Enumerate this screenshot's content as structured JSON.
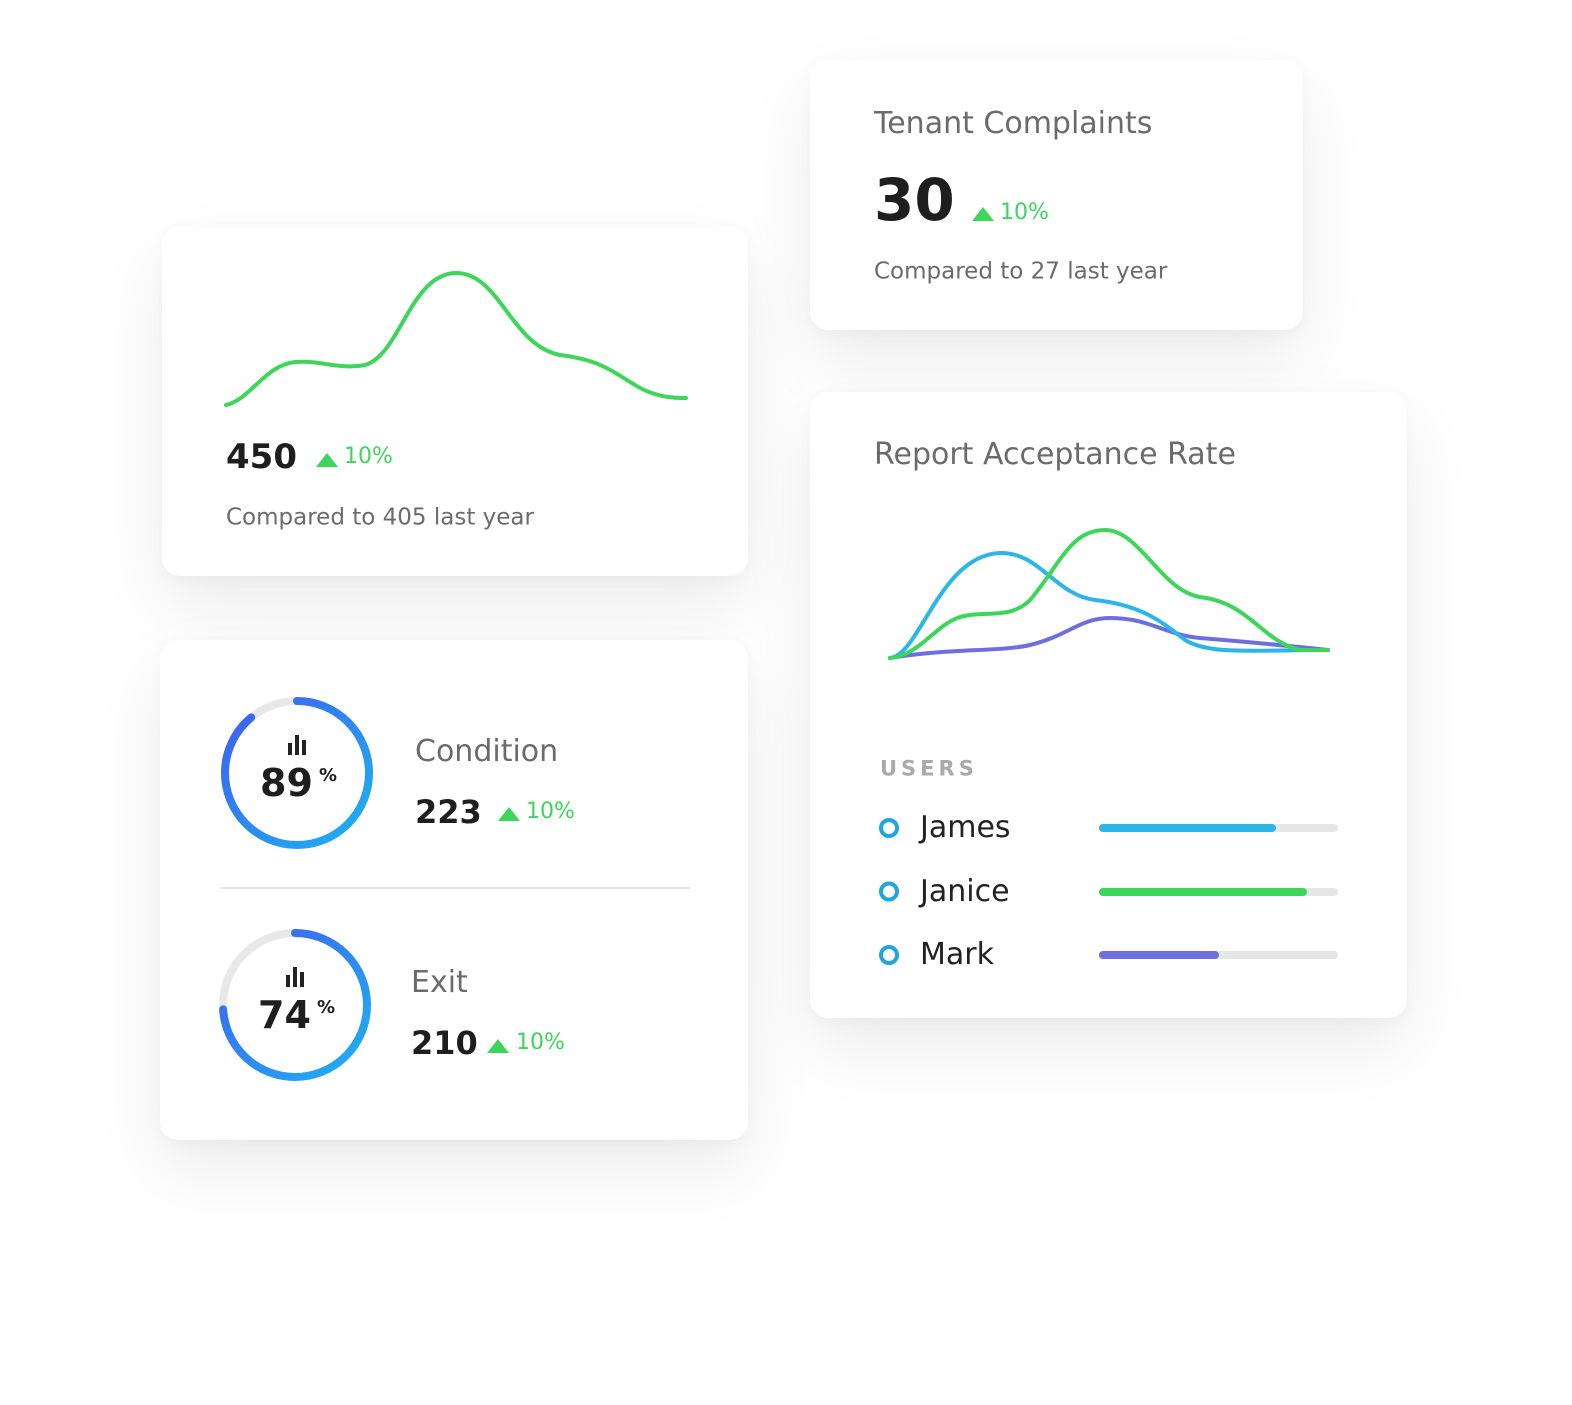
{
  "cards": {
    "visits": {
      "value": 450,
      "change": "10%",
      "comparison": "Compared to 405 last year"
    },
    "complaints": {
      "title": "Tenant Complaints",
      "value": 30,
      "change": "10%",
      "comparison": "Compared to 27 last year"
    },
    "reports": [
      {
        "percent": 89,
        "unit": "%",
        "label": "Condition",
        "value": 223,
        "change": "10%"
      },
      {
        "percent": 74,
        "unit": "%",
        "label": "Exit",
        "value": 210,
        "change": "10%"
      }
    ],
    "acceptance": {
      "title": "Report Acceptance Rate",
      "users_label": "USERS",
      "users": [
        {
          "name": "James",
          "value": 74,
          "color": "#2bb5e8"
        },
        {
          "name": "Janice",
          "value": 87,
          "color": "#3ed65a"
        },
        {
          "name": "Mark",
          "value": 50,
          "color": "#6f6ee0"
        }
      ]
    }
  }
}
